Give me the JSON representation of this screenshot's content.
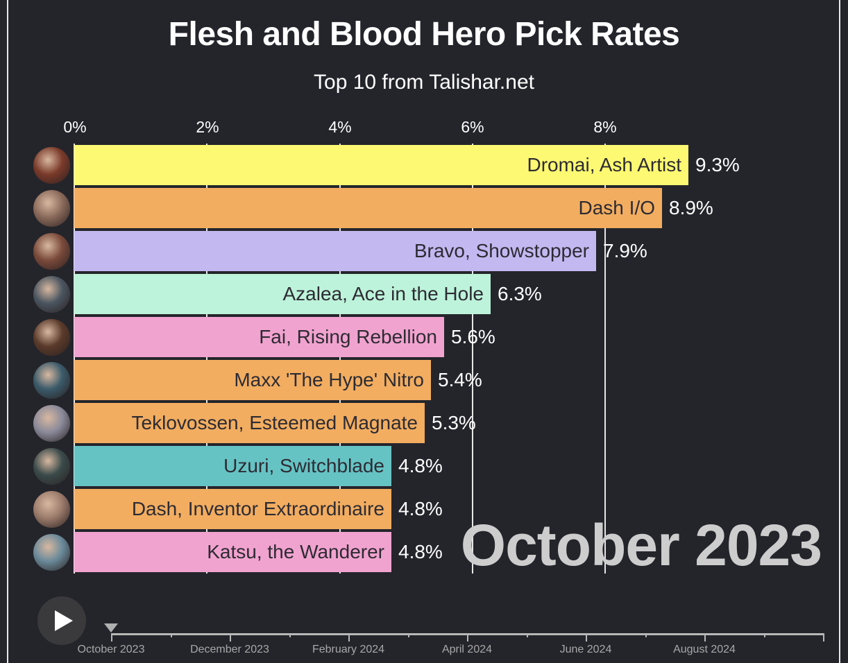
{
  "header": {
    "title": "Flesh and Blood Hero Pick Rates",
    "subtitle": "Top 10 from Talishar.net"
  },
  "axis": {
    "ticks": [
      "0%",
      "2%",
      "4%",
      "6%",
      "8%"
    ]
  },
  "current_period": "October 2023",
  "controls": {
    "play_icon": "play-icon"
  },
  "timeline": {
    "labels": [
      "October 2023",
      "December 2023",
      "February 2024",
      "April 2024",
      "June 2024",
      "August 2024"
    ],
    "current": "October 2023"
  },
  "colors": {
    "background": "#24252b",
    "yellow": "#fef972",
    "orange": "#f2ad60",
    "lavender": "#c4b8f1",
    "mint": "#bdf3da",
    "pink": "#f1a3cf",
    "teal": "#66c3c4"
  },
  "bars": [
    {
      "label": "Dromai, Ash Artist",
      "value": "9.3%",
      "color": "#fef972"
    },
    {
      "label": "Dash I/O",
      "value": "8.9%",
      "color": "#f2ad60"
    },
    {
      "label": "Bravo, Showstopper",
      "value": "7.9%",
      "color": "#c4b8f1"
    },
    {
      "label": "Azalea, Ace in the Hole",
      "value": "6.3%",
      "color": "#bdf3da"
    },
    {
      "label": "Fai, Rising Rebellion",
      "value": "5.6%",
      "color": "#f1a3cf"
    },
    {
      "label": "Maxx 'The Hype' Nitro",
      "value": "5.4%",
      "color": "#f2ad60"
    },
    {
      "label": "Teklovossen, Esteemed Magnate",
      "value": "5.3%",
      "color": "#f2ad60"
    },
    {
      "label": "Uzuri, Switchblade",
      "value": "4.8%",
      "color": "#66c3c4"
    },
    {
      "label": "Dash, Inventor Extraordinaire",
      "value": "4.8%",
      "color": "#f2ad60"
    },
    {
      "label": "Katsu, the Wanderer",
      "value": "4.8%",
      "color": "#f1a3cf"
    }
  ],
  "chart_data": {
    "type": "bar",
    "orientation": "horizontal",
    "title": "Flesh and Blood Hero Pick Rates",
    "subtitle": "Top 10 from Talishar.net",
    "period": "October 2023",
    "categories": [
      "Dromai, Ash Artist",
      "Dash I/O",
      "Bravo, Showstopper",
      "Azalea, Ace in the Hole",
      "Fai, Rising Rebellion",
      "Maxx 'The Hype' Nitro",
      "Teklovossen, Esteemed Magnate",
      "Uzuri, Switchblade",
      "Dash, Inventor Extraordinaire",
      "Katsu, the Wanderer"
    ],
    "values": [
      9.3,
      8.9,
      7.9,
      6.3,
      5.6,
      5.4,
      5.3,
      4.8,
      4.8,
      4.8
    ],
    "xlabel": "",
    "ylabel": "",
    "xticks": [
      "0%",
      "2%",
      "4%",
      "6%",
      "8%"
    ],
    "xlim": [
      0,
      11
    ],
    "grid": true,
    "legend": "none",
    "timeline_labels": [
      "October 2023",
      "December 2023",
      "February 2024",
      "April 2024",
      "June 2024",
      "August 2024"
    ]
  }
}
